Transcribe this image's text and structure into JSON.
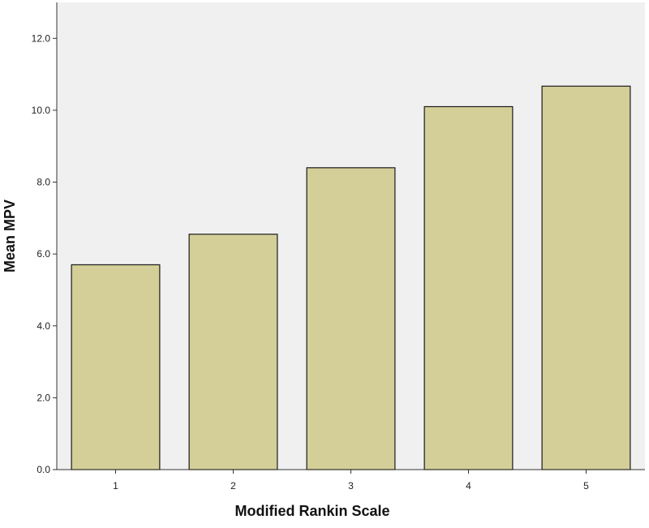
{
  "chart_data": {
    "type": "bar",
    "title": "",
    "xlabel": "Modified Rankin Scale",
    "ylabel": "Mean MPV",
    "categories": [
      "1",
      "2",
      "3",
      "4",
      "5"
    ],
    "values": [
      5.7,
      6.55,
      8.4,
      10.1,
      10.67
    ],
    "ylim": [
      0,
      13.0
    ],
    "yticks": [
      "0.0",
      "2.0",
      "4.0",
      "6.0",
      "8.0",
      "10.0",
      "12.0"
    ],
    "ytick_values": [
      0,
      2,
      4,
      6,
      8,
      10,
      12
    ],
    "grid": false,
    "legend": "none",
    "colors": {
      "bar_fill": "#d4cf98",
      "bar_stroke": "#1a1a1a",
      "plot_background": "#f0f0f0",
      "axis": "#333333"
    }
  }
}
